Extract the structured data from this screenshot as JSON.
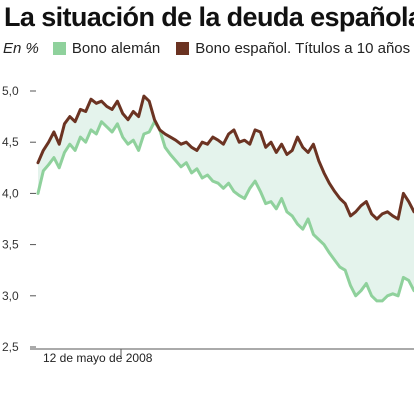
{
  "chart_data": {
    "type": "line",
    "title": "La situación de la deuda española",
    "unit_label": "En %",
    "ylim": [
      2.5,
      5.0
    ],
    "y_ticks": [
      "5,0",
      "4,5",
      "4,0",
      "3,5",
      "3,0",
      "2,5"
    ],
    "x_annotation": "12 de mayo de 2008",
    "grid": false,
    "legend_position": "top-left",
    "fill_between_color": "#e4f3ec",
    "series": [
      {
        "name": "Bono alemán",
        "color": "#8fd19c",
        "values": [
          4.0,
          4.22,
          4.28,
          4.35,
          4.25,
          4.4,
          4.48,
          4.42,
          4.55,
          4.5,
          4.62,
          4.58,
          4.7,
          4.65,
          4.6,
          4.68,
          4.55,
          4.48,
          4.52,
          4.42,
          4.58,
          4.6,
          4.7,
          4.62,
          4.45,
          4.38,
          4.32,
          4.26,
          4.3,
          4.2,
          4.24,
          4.15,
          4.18,
          4.12,
          4.1,
          4.05,
          4.1,
          4.02,
          3.98,
          3.95,
          4.05,
          4.12,
          4.02,
          3.9,
          3.92,
          3.85,
          3.95,
          3.82,
          3.78,
          3.7,
          3.65,
          3.75,
          3.6,
          3.55,
          3.5,
          3.42,
          3.35,
          3.28,
          3.25,
          3.1,
          3.0,
          3.05,
          3.12,
          3.0,
          2.95,
          2.95,
          3.0,
          3.02,
          3.0,
          3.18,
          3.15,
          3.05
        ]
      },
      {
        "name": "Bono español. Títulos a 10 años",
        "color": "#6b3322",
        "values": [
          4.3,
          4.42,
          4.5,
          4.6,
          4.48,
          4.68,
          4.75,
          4.7,
          4.82,
          4.8,
          4.92,
          4.88,
          4.9,
          4.85,
          4.82,
          4.9,
          4.78,
          4.72,
          4.8,
          4.75,
          4.95,
          4.9,
          4.72,
          4.62,
          4.58,
          4.55,
          4.52,
          4.48,
          4.5,
          4.45,
          4.42,
          4.5,
          4.48,
          4.55,
          4.52,
          4.48,
          4.58,
          4.62,
          4.5,
          4.52,
          4.48,
          4.62,
          4.6,
          4.45,
          4.5,
          4.4,
          4.48,
          4.38,
          4.42,
          4.55,
          4.45,
          4.4,
          4.48,
          4.32,
          4.2,
          4.1,
          4.02,
          3.95,
          3.9,
          3.78,
          3.82,
          3.88,
          3.92,
          3.8,
          3.75,
          3.8,
          3.82,
          3.78,
          3.75,
          4.0,
          3.92,
          3.82
        ]
      }
    ]
  }
}
